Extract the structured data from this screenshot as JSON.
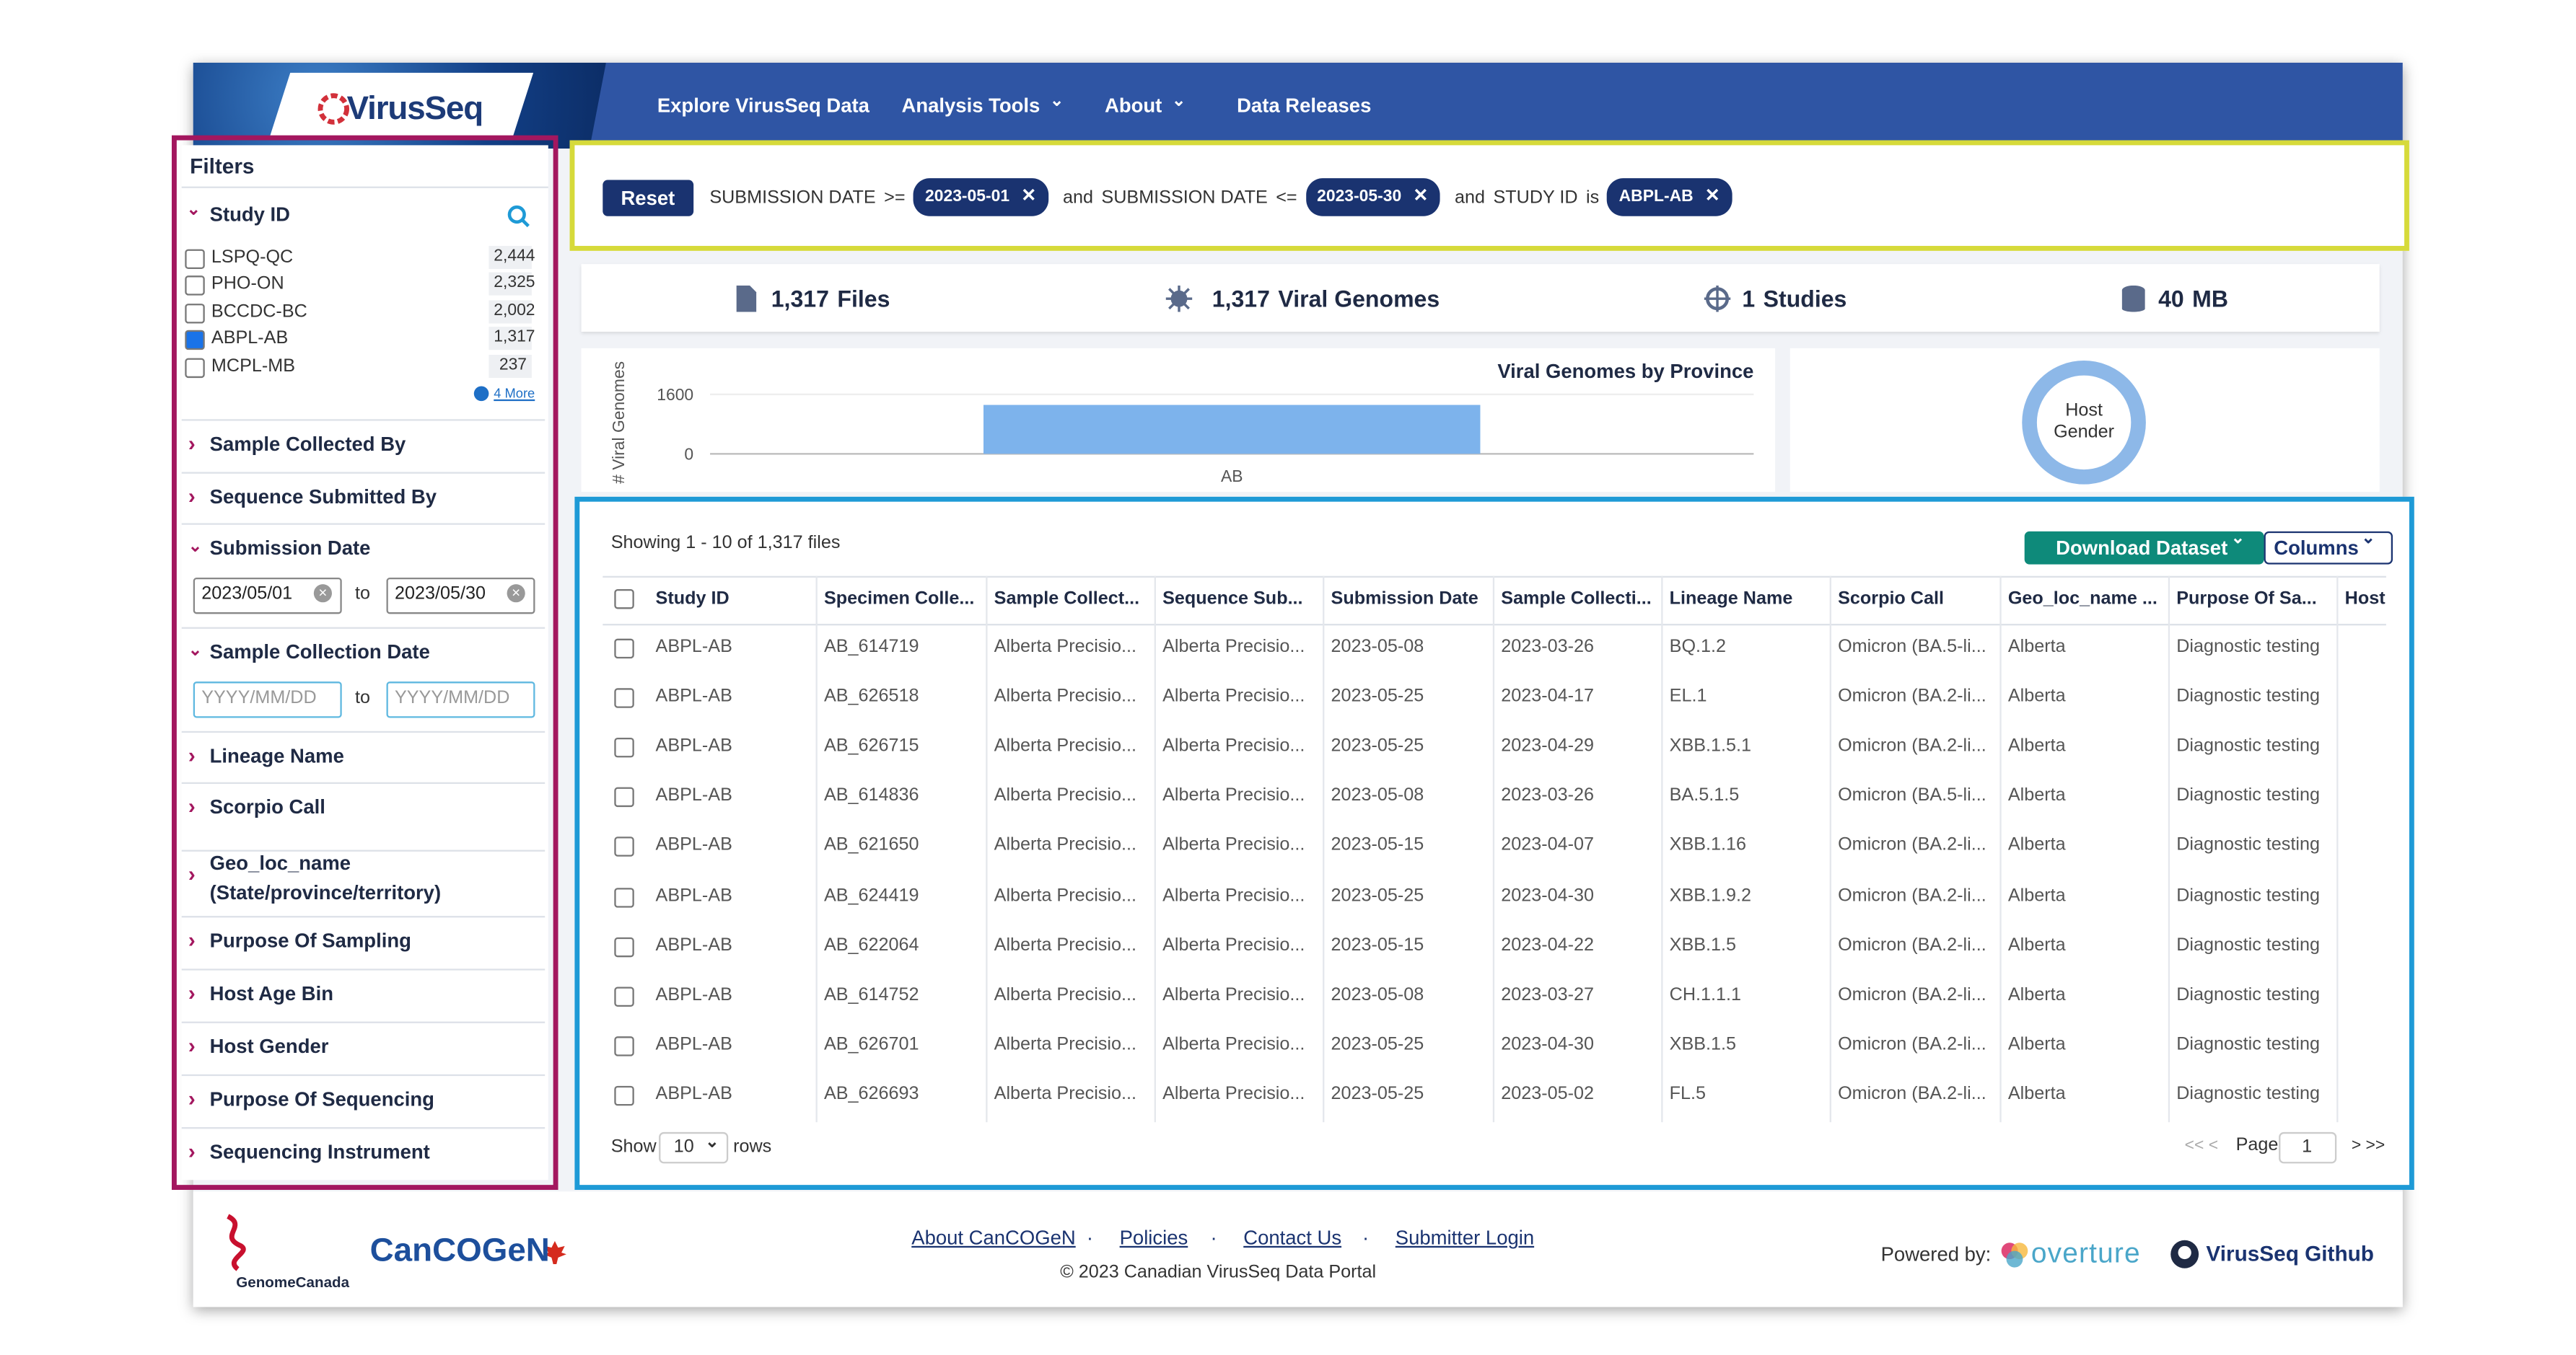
{
  "nav": {
    "logo": "VirusSeq",
    "links": [
      "Explore VirusSeq Data",
      "Analysis Tools",
      "About",
      "Data Releases"
    ]
  },
  "filters": {
    "title": "Filters",
    "study_id": {
      "label": "Study ID",
      "options": [
        {
          "label": "LSPQ-QC",
          "count": "2,444",
          "checked": false
        },
        {
          "label": "PHO-ON",
          "count": "2,325",
          "checked": false
        },
        {
          "label": "BCCDC-BC",
          "count": "2,002",
          "checked": false
        },
        {
          "label": "ABPL-AB",
          "count": "1,317",
          "checked": true
        },
        {
          "label": "MCPL-MB",
          "count": "237",
          "checked": false
        }
      ],
      "more": "4 More"
    },
    "facets": [
      {
        "label": "Sample Collected By"
      },
      {
        "label": "Sequence Submitted By"
      },
      {
        "label": "Submission Date",
        "expanded": true,
        "from": "2023/05/01",
        "sep": "to",
        "to": "2023/05/30"
      },
      {
        "label": "Sample Collection Date",
        "expanded": true,
        "from_placeholder": "YYYY/MM/DD",
        "sep": "to",
        "to_placeholder": "YYYY/MM/DD"
      },
      {
        "label": "Lineage Name"
      },
      {
        "label": "Scorpio Call"
      },
      {
        "label": "Geo_loc_name (State/province/territory)"
      },
      {
        "label": "Purpose Of Sampling"
      },
      {
        "label": "Host Age Bin"
      },
      {
        "label": "Host Gender"
      },
      {
        "label": "Purpose Of Sequencing"
      },
      {
        "label": "Sequencing Instrument"
      }
    ]
  },
  "query": {
    "reset": "Reset",
    "clauses": [
      {
        "field": "SUBMISSION DATE",
        "op": ">=",
        "value": "2023-05-01"
      },
      {
        "joiner": "and",
        "field": "SUBMISSION DATE",
        "op": "<=",
        "value": "2023-05-30"
      },
      {
        "joiner": "and",
        "field": "STUDY ID",
        "op": "is",
        "value": "ABPL-AB"
      }
    ]
  },
  "stats": [
    {
      "value": "1,317",
      "label": "Files"
    },
    {
      "value": "1,317",
      "label": "Viral Genomes"
    },
    {
      "value": "1",
      "label": "Studies"
    },
    {
      "value": "40",
      "label": "MB"
    }
  ],
  "chart_data": {
    "type": "bar",
    "title": "Viral Genomes by Province",
    "ylabel": "# Viral Genomes",
    "categories": [
      "AB"
    ],
    "values": [
      1317
    ],
    "ylim": [
      0,
      1600
    ],
    "yticks": [
      0,
      1600
    ],
    "color": "#7db3ec"
  },
  "donut": {
    "label": "Host Gender"
  },
  "table": {
    "showing": "Showing 1 - 10 of 1,317 files",
    "download": "Download Dataset",
    "columns_button": "Columns",
    "headers": [
      "Study ID",
      "Specimen Colle...",
      "Sample Collect...",
      "Sequence Sub...",
      "Submission Date",
      "Sample Collecti...",
      "Lineage Name",
      "Scorpio Call",
      "Geo_loc_name ...",
      "Purpose Of Sa...",
      "Host"
    ],
    "rows": [
      [
        "ABPL-AB",
        "AB_614719",
        "Alberta Precisio...",
        "Alberta Precisio...",
        "2023-05-08",
        "2023-03-26",
        "BQ.1.2",
        "Omicron (BA.5-li...",
        "Alberta",
        "Diagnostic testing"
      ],
      [
        "ABPL-AB",
        "AB_626518",
        "Alberta Precisio...",
        "Alberta Precisio...",
        "2023-05-25",
        "2023-04-17",
        "EL.1",
        "Omicron (BA.2-li...",
        "Alberta",
        "Diagnostic testing"
      ],
      [
        "ABPL-AB",
        "AB_626715",
        "Alberta Precisio...",
        "Alberta Precisio...",
        "2023-05-25",
        "2023-04-29",
        "XBB.1.5.1",
        "Omicron (BA.2-li...",
        "Alberta",
        "Diagnostic testing"
      ],
      [
        "ABPL-AB",
        "AB_614836",
        "Alberta Precisio...",
        "Alberta Precisio...",
        "2023-05-08",
        "2023-03-26",
        "BA.5.1.5",
        "Omicron (BA.5-li...",
        "Alberta",
        "Diagnostic testing"
      ],
      [
        "ABPL-AB",
        "AB_621650",
        "Alberta Precisio...",
        "Alberta Precisio...",
        "2023-05-15",
        "2023-04-07",
        "XBB.1.16",
        "Omicron (BA.2-li...",
        "Alberta",
        "Diagnostic testing"
      ],
      [
        "ABPL-AB",
        "AB_624419",
        "Alberta Precisio...",
        "Alberta Precisio...",
        "2023-05-25",
        "2023-04-30",
        "XBB.1.9.2",
        "Omicron (BA.2-li...",
        "Alberta",
        "Diagnostic testing"
      ],
      [
        "ABPL-AB",
        "AB_622064",
        "Alberta Precisio...",
        "Alberta Precisio...",
        "2023-05-15",
        "2023-04-22",
        "XBB.1.5",
        "Omicron (BA.2-li...",
        "Alberta",
        "Diagnostic testing"
      ],
      [
        "ABPL-AB",
        "AB_614752",
        "Alberta Precisio...",
        "Alberta Precisio...",
        "2023-05-08",
        "2023-03-27",
        "CH.1.1.1",
        "Omicron (BA.2-li...",
        "Alberta",
        "Diagnostic testing"
      ],
      [
        "ABPL-AB",
        "AB_626701",
        "Alberta Precisio...",
        "Alberta Precisio...",
        "2023-05-25",
        "2023-04-30",
        "XBB.1.5",
        "Omicron (BA.2-li...",
        "Alberta",
        "Diagnostic testing"
      ],
      [
        "ABPL-AB",
        "AB_626693",
        "Alberta Precisio...",
        "Alberta Precisio...",
        "2023-05-25",
        "2023-05-02",
        "FL.5",
        "Omicron (BA.2-li...",
        "Alberta",
        "Diagnostic testing"
      ]
    ],
    "show": "Show",
    "page_size": "10",
    "rows_label": "rows",
    "prev": "<< <",
    "page": "Page",
    "page_number": "1",
    "next": "> >>"
  },
  "footer": {
    "genome": "GenomeCanada",
    "brand": "CanCOGeN",
    "links": [
      "About CanCOGeN",
      "Policies",
      "Contact Us",
      "Submitter Login"
    ],
    "copyright": "© 2023 Canadian VirusSeq Data Portal",
    "powered": "Powered by:",
    "overture": "overture",
    "github": "VirusSeq Github"
  }
}
